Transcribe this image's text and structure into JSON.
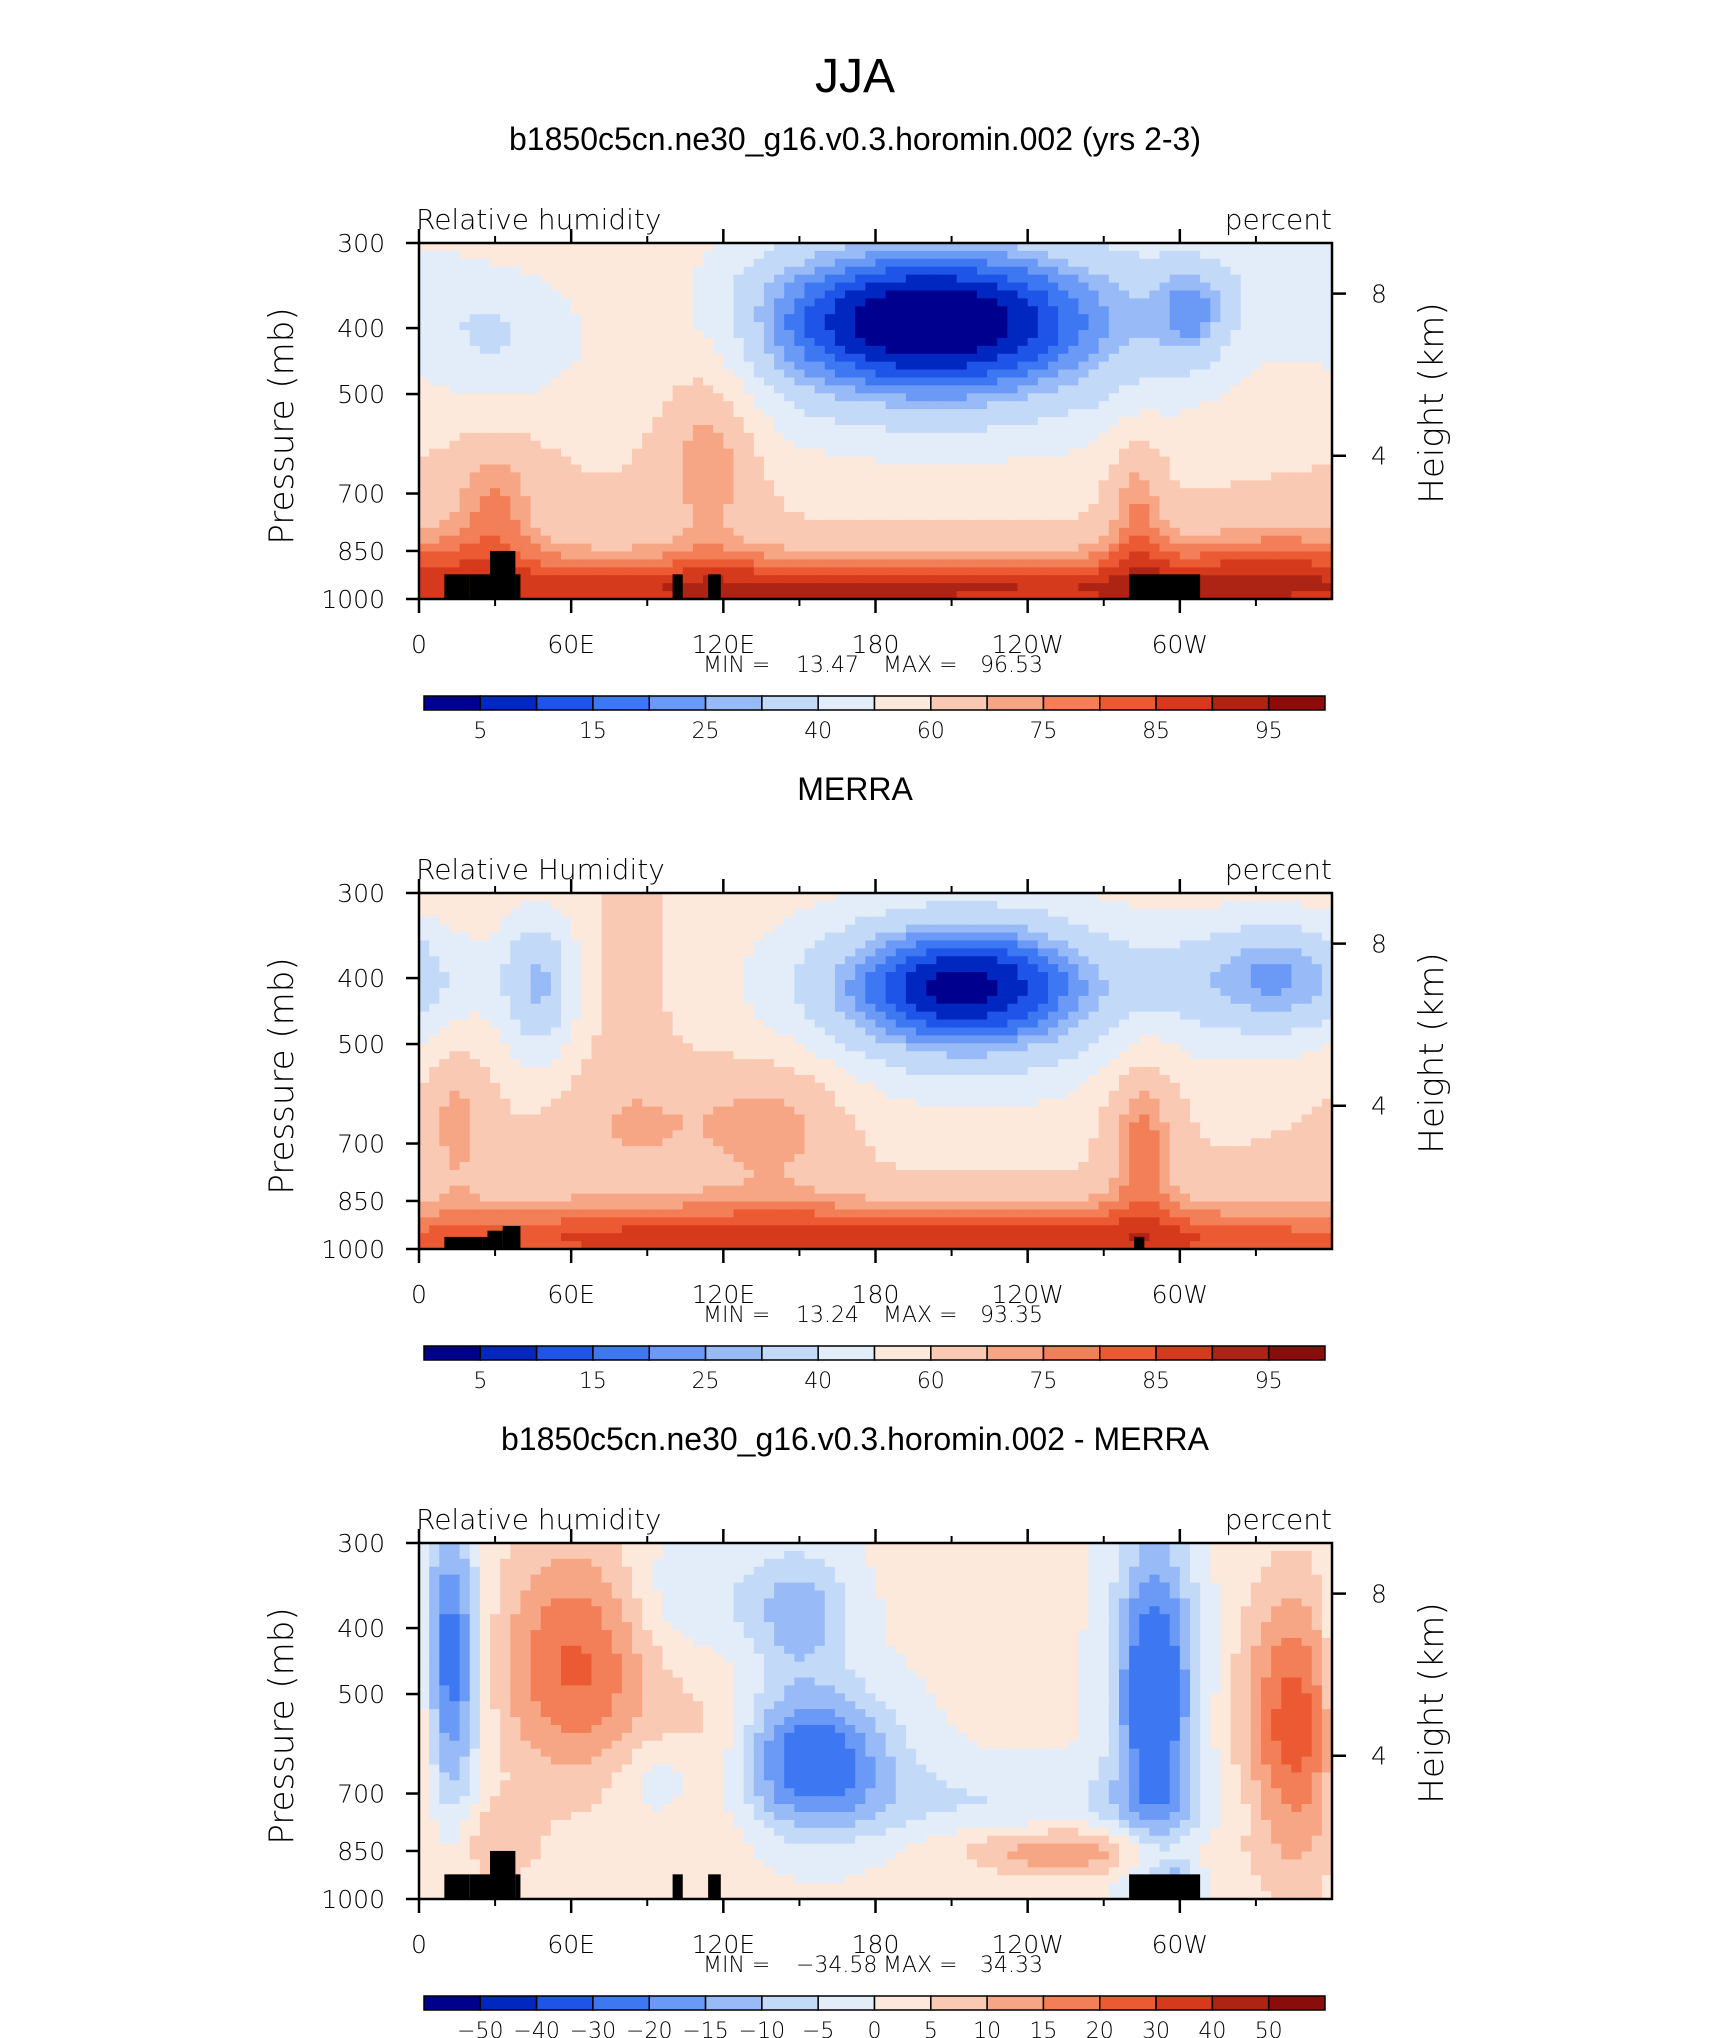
{
  "figure": {
    "season": "JJA"
  },
  "chart_data": [
    {
      "type": "heatmap",
      "title": "b1850c5cn.ne30_g16.v0.3.horomin.002 (yrs 2-3)",
      "left_string": "Relative humidity",
      "right_string": "percent",
      "xlabel": "",
      "ylabel": "Pressure (mb)",
      "ylabel_right": "Height (km)",
      "x_ticks": [
        "0",
        "60E",
        "120E",
        "180",
        "120W",
        "60W"
      ],
      "x_tick_values": [
        0,
        60,
        120,
        180,
        240,
        300
      ],
      "xlim": [
        0,
        360
      ],
      "y_ticks": [
        "300",
        "400",
        "500",
        "700",
        "850",
        "1000"
      ],
      "y_tick_values": [
        300,
        400,
        500,
        700,
        850,
        1000
      ],
      "ylim": [
        1000,
        300
      ],
      "y_scale": "log",
      "right_ticks": [
        "8",
        "4"
      ],
      "right_tick_pressures": [
        356,
        616
      ],
      "stats": {
        "min_label": "MIN =",
        "min": "13.47",
        "max_label": "MAX =",
        "max": "96.53"
      },
      "colorbar": {
        "labels": [
          "5",
          "15",
          "25",
          "40",
          "60",
          "75",
          "85",
          "95"
        ],
        "label_boundaries": [
          1,
          3,
          5,
          7,
          9,
          11,
          13,
          15
        ],
        "colors": [
          "#00008f",
          "#0028c0",
          "#1f54e8",
          "#3d78f2",
          "#6a9af5",
          "#98bbf7",
          "#c3d9f8",
          "#e3edf9",
          "#fde9dc",
          "#f9c9b3",
          "#f6a684",
          "#f27f57",
          "#ec5a33",
          "#d63a1c",
          "#ae2414",
          "#8a0d0b"
        ]
      },
      "field": {
        "base": 62,
        "grid_nx": 90,
        "grid_ny": 45,
        "features": [
          {
            "lon": 200,
            "p": 390,
            "slon": 60,
            "sp": 95,
            "a": -46
          },
          {
            "lon": 212,
            "p": 410,
            "slon": 85,
            "sp": 170,
            "a": -18
          },
          {
            "lon": 30,
            "p": 420,
            "slon": 22,
            "sp": 80,
            "a": -18
          },
          {
            "lon": 305,
            "p": 380,
            "slon": 10,
            "sp": 50,
            "a": -18
          },
          {
            "lon": 345,
            "p": 340,
            "slon": 35,
            "sp": 60,
            "a": -10
          },
          {
            "lon": 115,
            "p": 580,
            "slon": 14,
            "sp": 170,
            "a": 18
          },
          {
            "lon": 105,
            "p": 380,
            "slon": 22,
            "sp": 80,
            "a": 6
          },
          {
            "lon": 180,
            "p": 940,
            "slon": 200,
            "sp": 85,
            "a": 20
          },
          {
            "lon": 180,
            "p": 990,
            "slon": 200,
            "sp": 55,
            "a": 12
          },
          {
            "lon": 30,
            "p": 720,
            "slon": 12,
            "sp": 120,
            "a": 14
          },
          {
            "lon": 283,
            "p": 720,
            "slon": 8,
            "sp": 140,
            "a": 16
          },
          {
            "lon": 340,
            "p": 880,
            "slon": 40,
            "sp": 110,
            "a": 12
          }
        ]
      },
      "terrain": [
        [
          10,
          920
        ],
        [
          20,
          920
        ],
        [
          28,
          850
        ],
        [
          38,
          920
        ],
        [
          40,
          1000
        ],
        [
          100,
          920
        ],
        [
          104,
          1000
        ],
        [
          114,
          920
        ],
        [
          119,
          1000
        ],
        [
          280,
          920
        ],
        [
          308,
          1000
        ]
      ]
    },
    {
      "type": "heatmap",
      "title": "MERRA",
      "left_string": "Relative Humidity",
      "right_string": "percent",
      "xlabel": "",
      "ylabel": "Pressure (mb)",
      "ylabel_right": "Height (km)",
      "x_ticks": [
        "0",
        "60E",
        "120E",
        "180",
        "120W",
        "60W"
      ],
      "x_tick_values": [
        0,
        60,
        120,
        180,
        240,
        300
      ],
      "xlim": [
        0,
        360
      ],
      "y_ticks": [
        "300",
        "400",
        "500",
        "700",
        "850",
        "1000"
      ],
      "y_tick_values": [
        300,
        400,
        500,
        700,
        850,
        1000
      ],
      "ylim": [
        1000,
        300
      ],
      "y_scale": "log",
      "right_ticks": [
        "8",
        "4"
      ],
      "right_tick_pressures": [
        356,
        616
      ],
      "stats": {
        "min_label": "MIN =",
        "min": "13.24",
        "max_label": "MAX =",
        "max": "93.35"
      },
      "colorbar": {
        "labels": [
          "5",
          "15",
          "25",
          "40",
          "60",
          "75",
          "85",
          "95"
        ],
        "label_boundaries": [
          1,
          3,
          5,
          7,
          9,
          11,
          13,
          15
        ],
        "colors": [
          "#00008f",
          "#0028c0",
          "#1f54e8",
          "#3d78f2",
          "#6a9af5",
          "#98bbf7",
          "#c3d9f8",
          "#e3edf9",
          "#fde9dc",
          "#f9c9b3",
          "#f6a684",
          "#f27f57",
          "#ec5a33",
          "#d63a1c",
          "#ae2414",
          "#8a0d0b"
        ]
      },
      "field": {
        "base": 62,
        "grid_nx": 90,
        "grid_ny": 45,
        "features": [
          {
            "lon": 215,
            "p": 410,
            "slon": 42,
            "sp": 80,
            "a": -44
          },
          {
            "lon": 215,
            "p": 440,
            "slon": 75,
            "sp": 170,
            "a": -16
          },
          {
            "lon": 48,
            "p": 410,
            "slon": 12,
            "sp": 90,
            "a": -34
          },
          {
            "lon": 340,
            "p": 400,
            "slon": 30,
            "sp": 70,
            "a": -34
          },
          {
            "lon": 140,
            "p": 640,
            "slon": 22,
            "sp": 120,
            "a": 16
          },
          {
            "lon": 85,
            "p": 650,
            "slon": 20,
            "sp": 100,
            "a": 10
          },
          {
            "lon": 285,
            "p": 670,
            "slon": 10,
            "sp": 160,
            "a": 20
          },
          {
            "lon": 15,
            "p": 650,
            "slon": 8,
            "sp": 120,
            "a": 12
          },
          {
            "lon": 180,
            "p": 940,
            "slon": 200,
            "sp": 85,
            "a": 20
          },
          {
            "lon": 180,
            "p": 990,
            "slon": 200,
            "sp": 55,
            "a": 10
          },
          {
            "lon": 70,
            "p": 420,
            "slon": 25,
            "sp": 80,
            "a": 6
          }
        ]
      },
      "terrain": [
        [
          10,
          960
        ],
        [
          25,
          960
        ],
        [
          27,
          940
        ],
        [
          33,
          925
        ],
        [
          40,
          1000
        ],
        [
          282,
          960
        ],
        [
          286,
          1000
        ]
      ]
    },
    {
      "type": "heatmap",
      "title": "b1850c5cn.ne30_g16.v0.3.horomin.002 - MERRA",
      "left_string": "Relative humidity",
      "right_string": "percent",
      "xlabel": "",
      "ylabel": "Pressure (mb)",
      "ylabel_right": "Height (km)",
      "x_ticks": [
        "0",
        "60E",
        "120E",
        "180",
        "120W",
        "60W"
      ],
      "x_tick_values": [
        0,
        60,
        120,
        180,
        240,
        300
      ],
      "xlim": [
        0,
        360
      ],
      "y_ticks": [
        "300",
        "400",
        "500",
        "700",
        "850",
        "1000"
      ],
      "y_tick_values": [
        300,
        400,
        500,
        700,
        850,
        1000
      ],
      "ylim": [
        1000,
        300
      ],
      "y_scale": "log",
      "right_ticks": [
        "8",
        "4"
      ],
      "right_tick_pressures": [
        356,
        616
      ],
      "stats": {
        "min_label": "MIN =",
        "min": "−34.58",
        "max_label": "MAX =",
        "max": "34.33"
      },
      "colorbar": {
        "labels": [
          "−50",
          "−40",
          "−30",
          "−20",
          "−15",
          "−10",
          "−5",
          "0",
          "5",
          "10",
          "15",
          "20",
          "30",
          "40",
          "50"
        ],
        "label_boundaries": [
          1,
          2,
          3,
          4,
          5,
          6,
          7,
          8,
          9,
          10,
          11,
          12,
          13,
          14,
          15
        ],
        "colors": [
          "#00008f",
          "#0028c0",
          "#1f54e8",
          "#3d78f2",
          "#6a9af5",
          "#98bbf7",
          "#c3d9f8",
          "#e3edf9",
          "#fde9dc",
          "#f9c9b3",
          "#f6a684",
          "#f27f57",
          "#ec5a33",
          "#d63a1c",
          "#ae2414",
          "#8a0d0b"
        ]
      },
      "field": {
        "base": 1,
        "grid_nx": 90,
        "grid_ny": 45,
        "features": [
          {
            "lon": 12,
            "p": 450,
            "slon": 8,
            "sp": 180,
            "a": -28
          },
          {
            "lon": 62,
            "p": 450,
            "slon": 22,
            "sp": 150,
            "a": 20
          },
          {
            "lon": 155,
            "p": 620,
            "slon": 22,
            "sp": 110,
            "a": -26
          },
          {
            "lon": 150,
            "p": 380,
            "slon": 14,
            "sp": 60,
            "a": -14
          },
          {
            "lon": 105,
            "p": 360,
            "slon": 20,
            "sp": 60,
            "a": -7
          },
          {
            "lon": 290,
            "p": 500,
            "slon": 11,
            "sp": 220,
            "a": -30
          },
          {
            "lon": 345,
            "p": 560,
            "slon": 14,
            "sp": 220,
            "a": 22
          },
          {
            "lon": 255,
            "p": 850,
            "slon": 28,
            "sp": 50,
            "a": 14
          },
          {
            "lon": 118,
            "p": 620,
            "slon": 14,
            "sp": 150,
            "a": 8
          },
          {
            "lon": 95,
            "p": 660,
            "slon": 12,
            "sp": 60,
            "a": -6
          },
          {
            "lon": 230,
            "p": 720,
            "slon": 70,
            "sp": 70,
            "a": -6
          },
          {
            "lon": 300,
            "p": 930,
            "slon": 5,
            "sp": 40,
            "a": -10
          },
          {
            "lon": 30,
            "p": 820,
            "slon": 12,
            "sp": 90,
            "a": 8
          }
        ]
      },
      "terrain": [
        [
          10,
          920
        ],
        [
          20,
          920
        ],
        [
          28,
          850
        ],
        [
          38,
          920
        ],
        [
          40,
          1000
        ],
        [
          100,
          920
        ],
        [
          104,
          1000
        ],
        [
          114,
          920
        ],
        [
          119,
          1000
        ],
        [
          280,
          920
        ],
        [
          308,
          1000
        ]
      ]
    }
  ]
}
